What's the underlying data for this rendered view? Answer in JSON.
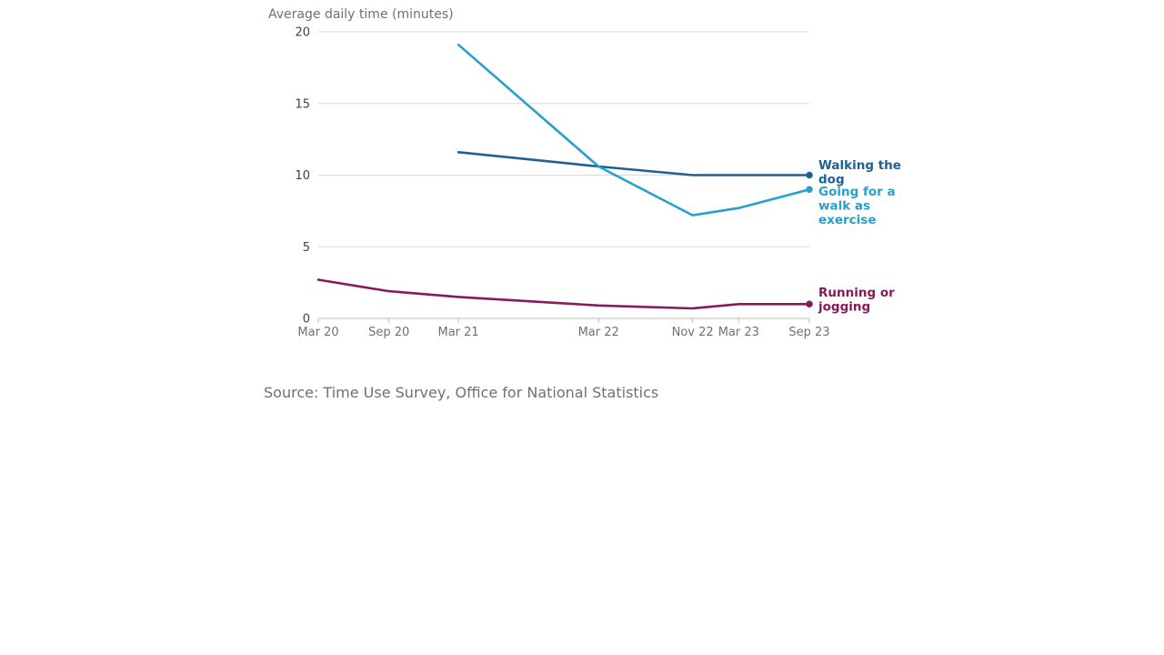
{
  "chart_data": {
    "type": "line",
    "ylabel": "Average daily time (minutes)",
    "ylim": [
      0,
      20
    ],
    "yticks": [
      0,
      5,
      10,
      15,
      20
    ],
    "xticks": [
      {
        "label": "Mar 20",
        "date": "2020-03"
      },
      {
        "label": "Sep 20",
        "date": "2020-09"
      },
      {
        "label": "Mar 21",
        "date": "2021-03"
      },
      {
        "label": "Mar 22",
        "date": "2022-03"
      },
      {
        "label": "Nov 22",
        "date": "2022-11"
      },
      {
        "label": "Mar 23",
        "date": "2023-03"
      },
      {
        "label": "Sep 23",
        "date": "2023-09"
      }
    ],
    "grid": true,
    "legend": "direct labels at line ends",
    "series": [
      {
        "name": "Walking the dog",
        "color": "#206095",
        "points": [
          {
            "x": "2021-03",
            "y": 11.6
          },
          {
            "x": "2022-03",
            "y": 10.6
          },
          {
            "x": "2022-11",
            "y": 10.0
          },
          {
            "x": "2023-03",
            "y": 10.0
          },
          {
            "x": "2023-09",
            "y": 10.0
          }
        ]
      },
      {
        "name": "Going for a walk as exercise",
        "color": "#27a0cc",
        "points": [
          {
            "x": "2021-03",
            "y": 19.1
          },
          {
            "x": "2022-03",
            "y": 10.6
          },
          {
            "x": "2022-11",
            "y": 7.2
          },
          {
            "x": "2023-03",
            "y": 7.7
          },
          {
            "x": "2023-09",
            "y": 9.0
          }
        ]
      },
      {
        "name": "Running or jogging",
        "color": "#871a5b",
        "points": [
          {
            "x": "2020-03",
            "y": 2.7
          },
          {
            "x": "2020-09",
            "y": 1.9
          },
          {
            "x": "2021-03",
            "y": 1.5
          },
          {
            "x": "2022-03",
            "y": 0.9
          },
          {
            "x": "2022-11",
            "y": 0.7
          },
          {
            "x": "2023-03",
            "y": 1.0
          },
          {
            "x": "2023-09",
            "y": 1.0
          }
        ]
      }
    ]
  },
  "source": "Source: Time Use Survey, Office for National Statistics"
}
